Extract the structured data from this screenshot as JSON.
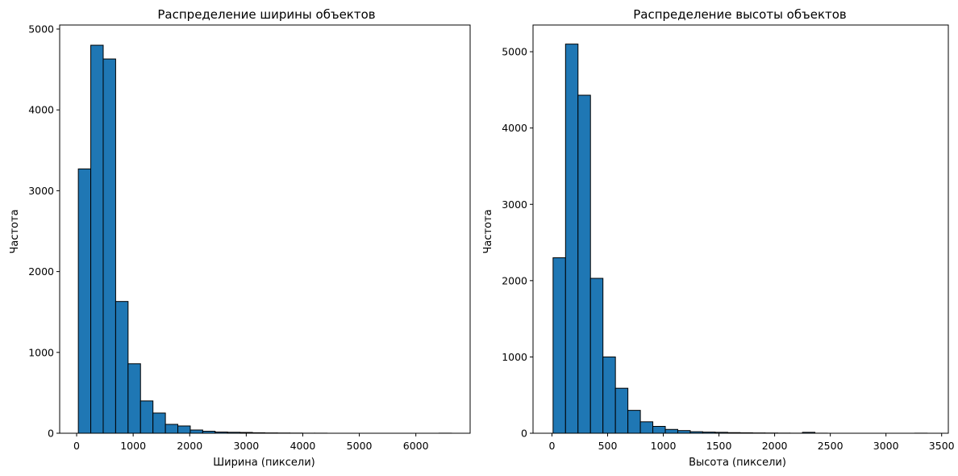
{
  "chart_data": [
    {
      "type": "bar",
      "title": "Распределение ширины объектов",
      "xlabel": "Ширина (пиксели)",
      "ylabel": "Частота",
      "bar_color": "#1f77b4",
      "edge_color": "#000000",
      "xlim": [
        -300,
        6960
      ],
      "ylim": [
        0,
        5050
      ],
      "x_ticks": [
        0,
        1000,
        2000,
        3000,
        4000,
        5000,
        6000
      ],
      "y_ticks": [
        0,
        1000,
        2000,
        3000,
        4000,
        5000
      ],
      "bin_edges": [
        30,
        250,
        470,
        690,
        910,
        1130,
        1350,
        1570,
        1790,
        2010,
        2230,
        2450,
        2670,
        2890,
        3110,
        3330,
        3550,
        3770,
        3990,
        4210,
        4430,
        4650,
        4870,
        5090,
        5310,
        5530,
        5750,
        5970,
        6190,
        6410,
        6630
      ],
      "values": [
        3270,
        4800,
        4630,
        1630,
        860,
        400,
        250,
        110,
        90,
        40,
        25,
        15,
        12,
        10,
        6,
        4,
        3,
        2,
        1,
        1,
        0,
        0,
        0,
        0,
        0,
        0,
        0,
        0,
        0,
        1
      ]
    },
    {
      "type": "bar",
      "title": "Распределение высоты объектов",
      "xlabel": "Высота (пиксели)",
      "ylabel": "Частота",
      "bar_color": "#1f77b4",
      "edge_color": "#000000",
      "xlim": [
        -170,
        3560
      ],
      "ylim": [
        0,
        5350
      ],
      "x_ticks": [
        0,
        500,
        1000,
        1500,
        2000,
        2500,
        3000,
        3500
      ],
      "y_ticks": [
        0,
        1000,
        2000,
        3000,
        4000,
        5000
      ],
      "bin_edges": [
        10,
        122,
        234,
        346,
        458,
        570,
        682,
        794,
        906,
        1018,
        1130,
        1242,
        1354,
        1466,
        1578,
        1690,
        1802,
        1914,
        2026,
        2138,
        2250,
        2362,
        2474,
        2586,
        2698,
        2810,
        2922,
        3034,
        3146,
        3258,
        3370
      ],
      "values": [
        2300,
        5100,
        4430,
        2030,
        1000,
        590,
        300,
        150,
        90,
        50,
        35,
        20,
        15,
        12,
        8,
        6,
        4,
        3,
        2,
        1,
        12,
        1,
        0,
        0,
        0,
        0,
        0,
        0,
        0,
        1
      ]
    }
  ]
}
